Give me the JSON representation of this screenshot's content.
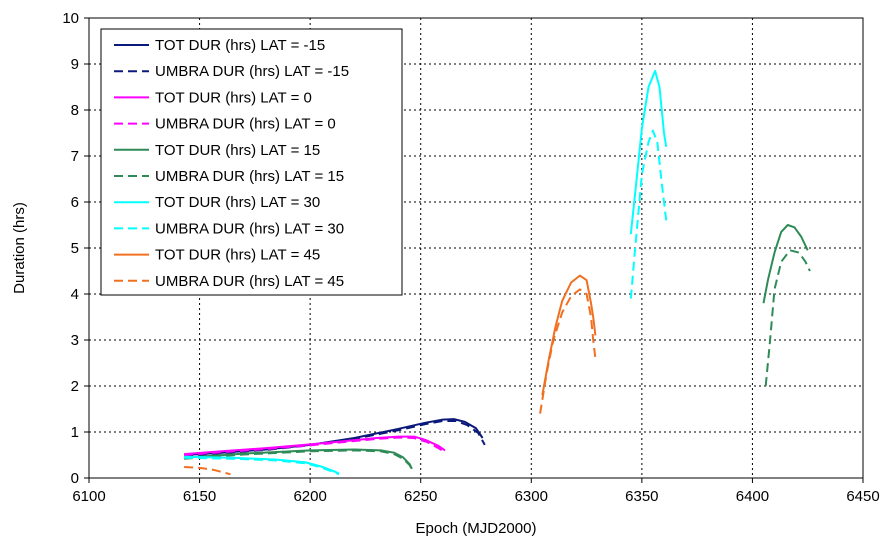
{
  "chart_data": {
    "type": "line",
    "title": "",
    "xlabel": "Epoch (MJD2000)",
    "ylabel": "Duration (hrs)",
    "xlim": [
      6100,
      6450
    ],
    "ylim": [
      0,
      10
    ],
    "xticks": [
      6100,
      6150,
      6200,
      6250,
      6300,
      6350,
      6400,
      6450
    ],
    "yticks": [
      0,
      1,
      2,
      3,
      4,
      5,
      6,
      7,
      8,
      9,
      10
    ],
    "xtick_labels": [
      "6100",
      "6150",
      "6200",
      "6250",
      "6300",
      "6350",
      "6400",
      "6450"
    ],
    "ytick_labels": [
      "0",
      "1",
      "2",
      "3",
      "4",
      "5",
      "6",
      "7",
      "8",
      "9",
      "10"
    ],
    "grid": true,
    "legend_position": "top-left",
    "series": [
      {
        "name": "TOT DUR (hrs) LAT = -15",
        "color": "#0b1a7a",
        "dash": "solid",
        "segments": [
          [
            [
              6143,
              0.5
            ],
            [
              6160,
              0.55
            ],
            [
              6180,
              0.62
            ],
            [
              6200,
              0.72
            ],
            [
              6220,
              0.87
            ],
            [
              6240,
              1.07
            ],
            [
              6252,
              1.2
            ],
            [
              6260,
              1.27
            ],
            [
              6265,
              1.28
            ],
            [
              6270,
              1.22
            ],
            [
              6275,
              1.08
            ],
            [
              6278,
              0.87
            ]
          ]
        ]
      },
      {
        "name": "UMBRA DUR (hrs) LAT = -15",
        "color": "#0b1a7a",
        "dash": "dashed",
        "segments": [
          [
            [
              6143,
              0.48
            ],
            [
              6160,
              0.54
            ],
            [
              6180,
              0.61
            ],
            [
              6200,
              0.71
            ],
            [
              6220,
              0.85
            ],
            [
              6240,
              1.04
            ],
            [
              6252,
              1.17
            ],
            [
              6260,
              1.24
            ],
            [
              6266,
              1.24
            ],
            [
              6271,
              1.15
            ],
            [
              6276,
              0.98
            ],
            [
              6279,
              0.72
            ]
          ]
        ]
      },
      {
        "name": "TOT DUR (hrs) LAT = 0",
        "color": "#ff00ff",
        "dash": "solid",
        "segments": [
          [
            [
              6143,
              0.52
            ],
            [
              6160,
              0.58
            ],
            [
              6180,
              0.65
            ],
            [
              6200,
              0.73
            ],
            [
              6215,
              0.8
            ],
            [
              6230,
              0.87
            ],
            [
              6240,
              0.9
            ],
            [
              6247,
              0.9
            ],
            [
              6252,
              0.83
            ],
            [
              6258,
              0.7
            ],
            [
              6261,
              0.6
            ]
          ]
        ]
      },
      {
        "name": "UMBRA DUR (hrs) LAT = 0",
        "color": "#ff00ff",
        "dash": "dashed",
        "segments": [
          [
            [
              6143,
              0.5
            ],
            [
              6160,
              0.56
            ],
            [
              6180,
              0.63
            ],
            [
              6200,
              0.71
            ],
            [
              6215,
              0.78
            ],
            [
              6230,
              0.85
            ],
            [
              6240,
              0.88
            ],
            [
              6247,
              0.87
            ],
            [
              6253,
              0.78
            ],
            [
              6258,
              0.65
            ],
            [
              6261,
              0.56
            ]
          ]
        ]
      },
      {
        "name": "TOT DUR (hrs) LAT = 15",
        "color": "#2e8b57",
        "dash": "solid",
        "segments": [
          [
            [
              6143,
              0.44
            ],
            [
              6170,
              0.53
            ],
            [
              6200,
              0.6
            ],
            [
              6220,
              0.62
            ],
            [
              6232,
              0.6
            ],
            [
              6238,
              0.55
            ],
            [
              6242,
              0.45
            ],
            [
              6245,
              0.3
            ],
            [
              6246,
              0.2
            ]
          ],
          [
            [
              6405,
              3.8
            ],
            [
              6407,
              4.3
            ],
            [
              6410,
              4.9
            ],
            [
              6413,
              5.35
            ],
            [
              6416,
              5.5
            ],
            [
              6419,
              5.45
            ],
            [
              6422,
              5.25
            ],
            [
              6425,
              4.95
            ]
          ]
        ]
      },
      {
        "name": "UMBRA DUR (hrs) LAT = 15",
        "color": "#2e8b57",
        "dash": "dashed",
        "segments": [
          [
            [
              6143,
              0.42
            ],
            [
              6170,
              0.51
            ],
            [
              6200,
              0.58
            ],
            [
              6220,
              0.6
            ],
            [
              6232,
              0.58
            ],
            [
              6238,
              0.52
            ],
            [
              6242,
              0.42
            ],
            [
              6245,
              0.28
            ],
            [
              6246,
              0.18
            ]
          ],
          [
            [
              6406,
              2.0
            ],
            [
              6408,
              3.0
            ],
            [
              6410,
              4.1
            ],
            [
              6413,
              4.7
            ],
            [
              6417,
              4.95
            ],
            [
              6421,
              4.9
            ],
            [
              6424,
              4.7
            ],
            [
              6426,
              4.5
            ]
          ]
        ]
      },
      {
        "name": "TOT DUR (hrs) LAT = 30",
        "color": "#00ffff",
        "dash": "solid",
        "segments": [
          [
            [
              6143,
              0.46
            ],
            [
              6165,
              0.44
            ],
            [
              6185,
              0.4
            ],
            [
              6198,
              0.34
            ],
            [
              6205,
              0.25
            ],
            [
              6210,
              0.16
            ],
            [
              6213,
              0.1
            ]
          ],
          [
            [
              6345,
              5.3
            ],
            [
              6347,
              6.2
            ],
            [
              6350,
              7.6
            ],
            [
              6353,
              8.5
            ],
            [
              6356,
              8.85
            ],
            [
              6358,
              8.5
            ],
            [
              6360,
              7.5
            ],
            [
              6361,
              7.2
            ]
          ]
        ]
      },
      {
        "name": "UMBRA DUR (hrs) LAT = 30",
        "color": "#00ffff",
        "dash": "dashed",
        "segments": [
          [
            [
              6143,
              0.44
            ],
            [
              6165,
              0.42
            ],
            [
              6185,
              0.38
            ],
            [
              6198,
              0.32
            ],
            [
              6205,
              0.23
            ],
            [
              6210,
              0.14
            ],
            [
              6213,
              0.08
            ]
          ],
          [
            [
              6345,
              3.9
            ],
            [
              6347,
              5.0
            ],
            [
              6350,
              6.6
            ],
            [
              6353,
              7.3
            ],
            [
              6355,
              7.55
            ],
            [
              6357,
              7.3
            ],
            [
              6359,
              6.4
            ],
            [
              6361,
              5.6
            ]
          ]
        ]
      },
      {
        "name": "TOT DUR (hrs) LAT = 45",
        "color": "#f07020",
        "dash": "solid",
        "segments": [
          [
            [
              6305,
              1.8
            ],
            [
              6308,
              2.6
            ],
            [
              6311,
              3.3
            ],
            [
              6314,
              3.85
            ],
            [
              6318,
              4.25
            ],
            [
              6322,
              4.4
            ],
            [
              6325,
              4.3
            ],
            [
              6327,
              3.8
            ],
            [
              6328,
              3.5
            ],
            [
              6329,
              3.1
            ]
          ]
        ]
      },
      {
        "name": "UMBRA DUR (hrs) LAT = 45",
        "color": "#f07020",
        "dash": "dashed",
        "segments": [
          [
            [
              6304,
              1.4
            ],
            [
              6307,
              2.3
            ],
            [
              6310,
              3.0
            ],
            [
              6314,
              3.6
            ],
            [
              6318,
              3.95
            ],
            [
              6322,
              4.1
            ],
            [
              6325,
              4.0
            ],
            [
              6327,
              3.5
            ],
            [
              6328,
              3.0
            ],
            [
              6329,
              2.6
            ]
          ],
          [
            [
              6143,
              0.24
            ],
            [
              6150,
              0.22
            ],
            [
              6156,
              0.18
            ],
            [
              6161,
              0.12
            ],
            [
              6164,
              0.08
            ]
          ]
        ]
      }
    ]
  }
}
